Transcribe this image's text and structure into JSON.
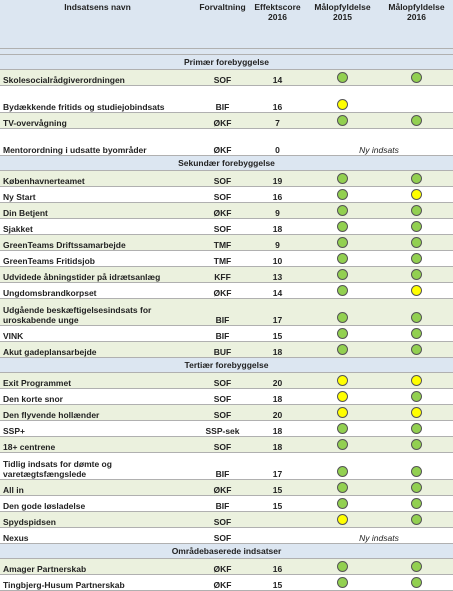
{
  "header": {
    "name": "Indsatsens navn",
    "forvaltning": "Forvaltning",
    "score": "Effektscore\n2016",
    "y2015": "Målopfyldelse\n2015",
    "y2016": "Målopfyldelse\n2016"
  },
  "sections": [
    {
      "title": "Primær forebyggelse",
      "rows": [
        {
          "name": "Skolesocialrådgiverordningen",
          "forvaltning": "SOF",
          "score": 14,
          "s2015": "#92d050",
          "s2016": "#92d050"
        },
        {
          "name": "Bydækkende fritids og studiejobindsats",
          "forvaltning": "BIF",
          "score": 16,
          "s2015": "#ffff00",
          "s2016": null,
          "tall": true
        },
        {
          "name": "TV-overvågning",
          "forvaltning": "ØKF",
          "score": 7,
          "s2015": "#92d050",
          "s2016": "#92d050"
        },
        {
          "name": "Mentorordning i udsatte byområder",
          "forvaltning": "ØKF",
          "score": 0,
          "s2015": null,
          "s2016": null,
          "note": "Ny indsats",
          "tall": true
        }
      ]
    },
    {
      "title": "Sekundær forebyggelse",
      "rows": [
        {
          "name": "Københavnerteamet",
          "forvaltning": "SOF",
          "score": 19,
          "s2015": "#92d050",
          "s2016": "#92d050"
        },
        {
          "name": "Ny Start",
          "forvaltning": "SOF",
          "score": 16,
          "s2015": "#92d050",
          "s2016": "#ffff00"
        },
        {
          "name": "Din Betjent",
          "forvaltning": "ØKF",
          "score": 9,
          "s2015": "#92d050",
          "s2016": "#92d050"
        },
        {
          "name": "Sjakket",
          "forvaltning": "SOF",
          "score": 18,
          "s2015": "#92d050",
          "s2016": "#92d050"
        },
        {
          "name": "GreenTeams Driftssamarbejde",
          "forvaltning": "TMF",
          "score": 9,
          "s2015": "#92d050",
          "s2016": "#92d050"
        },
        {
          "name": "GreenTeams Fritidsjob",
          "forvaltning": "TMF",
          "score": 10,
          "s2015": "#92d050",
          "s2016": "#92d050"
        },
        {
          "name": "Udvidede åbningstider på idrætsanlæg",
          "forvaltning": "KFF",
          "score": 13,
          "s2015": "#92d050",
          "s2016": "#92d050"
        },
        {
          "name": "Ungdomsbrandkorpset",
          "forvaltning": "ØKF",
          "score": 14,
          "s2015": "#92d050",
          "s2016": "#ffff00"
        },
        {
          "name": "Udgående beskæftigelsesindsats for uroskabende unge",
          "forvaltning": "BIF",
          "score": 17,
          "s2015": "#92d050",
          "s2016": "#92d050",
          "tall": true
        },
        {
          "name": "VINK",
          "forvaltning": "BIF",
          "score": 15,
          "s2015": "#92d050",
          "s2016": "#92d050"
        },
        {
          "name": "Akut gadeplansarbejde",
          "forvaltning": "BUF",
          "score": 18,
          "s2015": "#92d050",
          "s2016": "#92d050"
        }
      ]
    },
    {
      "title": "Tertiær forebyggelse",
      "rows": [
        {
          "name": "Exit Programmet",
          "forvaltning": "SOF",
          "score": 20,
          "s2015": "#ffff00",
          "s2016": "#ffff00"
        },
        {
          "name": "Den korte snor",
          "forvaltning": "SOF",
          "score": 18,
          "s2015": "#ffff00",
          "s2016": "#92d050"
        },
        {
          "name": "Den flyvende hollænder",
          "forvaltning": "SOF",
          "score": 20,
          "s2015": "#ffff00",
          "s2016": "#ffff00"
        },
        {
          "name": "SSP+",
          "forvaltning": "SSP-sek",
          "score": 18,
          "s2015": "#92d050",
          "s2016": "#92d050"
        },
        {
          "name": "18+ centrene",
          "forvaltning": "SOF",
          "score": 18,
          "s2015": "#92d050",
          "s2016": "#92d050"
        },
        {
          "name": "Tidlig indsats for dømte og varetægtsfængslede",
          "forvaltning": "BIF",
          "score": 17,
          "s2015": "#92d050",
          "s2016": "#92d050",
          "tall": true
        },
        {
          "name": "All in",
          "forvaltning": "ØKF",
          "score": 15,
          "s2015": "#92d050",
          "s2016": "#92d050"
        },
        {
          "name": "Den gode løsladelse",
          "forvaltning": "BIF",
          "score": 15,
          "s2015": "#92d050",
          "s2016": "#92d050"
        },
        {
          "name": "Spydspidsen",
          "forvaltning": "SOF",
          "score": null,
          "s2015": "#ffff00",
          "s2016": "#92d050"
        },
        {
          "name": "Nexus",
          "forvaltning": "SOF",
          "score": null,
          "s2015": null,
          "s2016": null,
          "note": "Ny indsats"
        }
      ]
    },
    {
      "title": "Områdebaserede indsatser",
      "rows": [
        {
          "name": "Amager Partnerskab",
          "forvaltning": "ØKF",
          "score": 16,
          "s2015": "#92d050",
          "s2016": "#92d050"
        },
        {
          "name": "Tingbjerg-Husum Partnerskab",
          "forvaltning": "ØKF",
          "score": 15,
          "s2015": "#92d050",
          "s2016": "#92d050"
        }
      ]
    }
  ]
}
